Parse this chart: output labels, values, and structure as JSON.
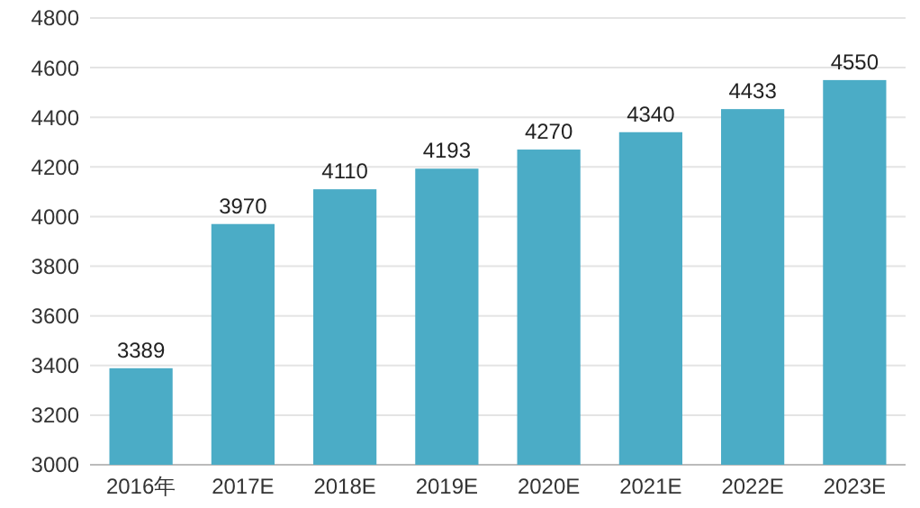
{
  "chart_data": {
    "type": "bar",
    "categories": [
      "2016年",
      "2017E",
      "2018E",
      "2019E",
      "2020E",
      "2021E",
      "2022E",
      "2023E"
    ],
    "values": [
      3389,
      3970,
      4110,
      4193,
      4270,
      4340,
      4433,
      4550
    ],
    "color": "#4bacc6",
    "ylim": [
      3000,
      4800
    ],
    "yticks": [
      3000,
      3200,
      3400,
      3600,
      3800,
      4000,
      4200,
      4400,
      4600,
      4800
    ],
    "grid": "y",
    "data_labels": true
  }
}
